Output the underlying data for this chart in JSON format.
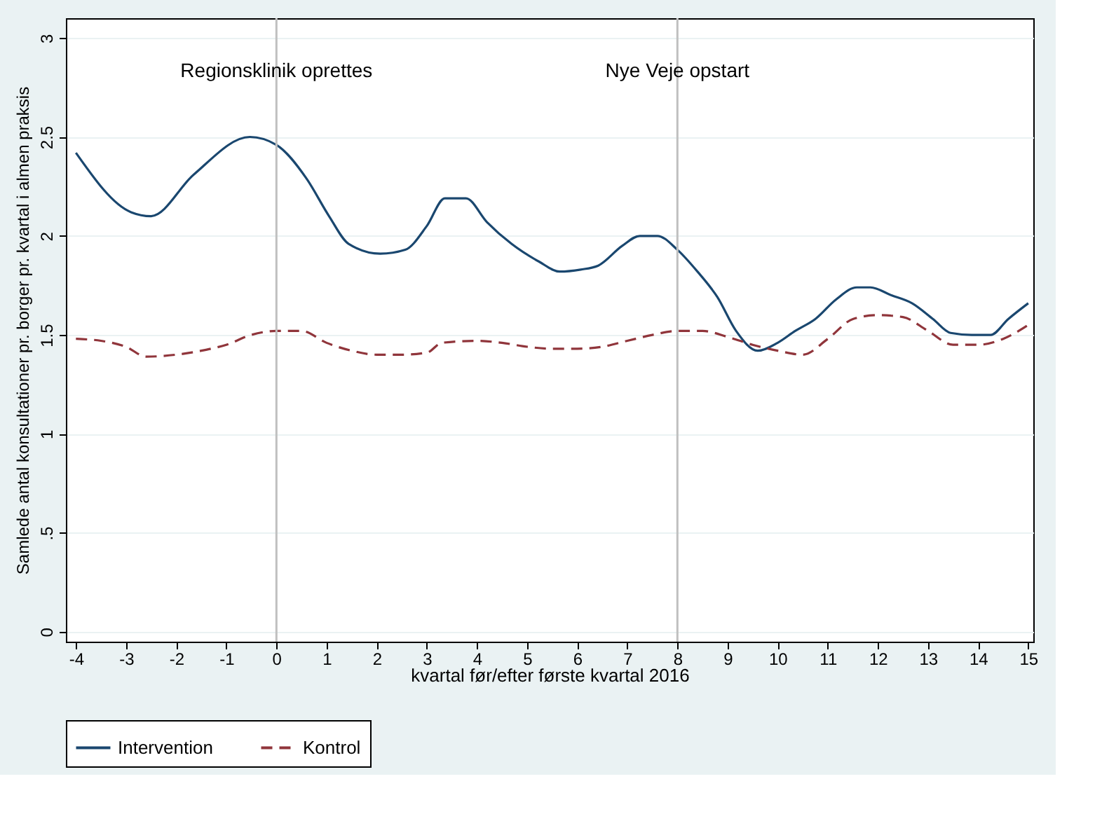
{
  "chart_data": {
    "type": "line",
    "xlabel": "kvartal før/efter første kvartal 2016",
    "ylabel": "Samlede antal konsultationer pr. borger pr. kvartal i almen praksis",
    "xlim": [
      -4.2,
      15.1
    ],
    "xticks": [
      -4,
      -3,
      -2,
      -1,
      0,
      1,
      2,
      3,
      4,
      5,
      6,
      7,
      8,
      9,
      10,
      11,
      12,
      13,
      14,
      15
    ],
    "ylim": [
      -0.05,
      3.1
    ],
    "yticks": [
      0,
      {
        "value": 0.5,
        "label": ".5"
      },
      1,
      1.5,
      2,
      2.5,
      3
    ],
    "grid": "y",
    "legend": "bottom",
    "marker": "none",
    "ref_lines": [
      {
        "axis": "x",
        "value": 0,
        "label": "Regionsklinik oprettes",
        "color": "#c0c0c0"
      },
      {
        "axis": "x",
        "value": 8,
        "label": "Nye Veje opstart",
        "color": "#c0c0c0"
      }
    ],
    "series": [
      {
        "name": "Intervention",
        "color": "#1a476f",
        "line_style": "solid",
        "x": [
          -4,
          -2.9,
          -2.5,
          -1.65,
          -0.53,
          0,
          0.6,
          1.05,
          1.44,
          2.07,
          2.57,
          3,
          3.36,
          3.78,
          4.2,
          4.69,
          5.24,
          5.65,
          6.07,
          6.42,
          6.9,
          7.25,
          7.6,
          8,
          8.4,
          8.8,
          9.17,
          9.6,
          10,
          10.35,
          10.75,
          11.17,
          11.58,
          11.85,
          12.27,
          12.68,
          13.1,
          13.45,
          13.87,
          14.25,
          14.6,
          15
        ],
        "values": [
          2.42,
          2.12,
          2.1,
          2.31,
          2.5,
          2.46,
          2.29,
          2.1,
          1.96,
          1.91,
          1.93,
          2.05,
          2.19,
          2.19,
          2.07,
          1.96,
          1.87,
          1.82,
          1.83,
          1.85,
          1.95,
          2.0,
          2.0,
          1.93,
          1.82,
          1.69,
          1.52,
          1.42,
          1.46,
          1.52,
          1.58,
          1.68,
          1.74,
          1.74,
          1.7,
          1.66,
          1.58,
          1.51,
          1.5,
          1.5,
          1.58,
          1.66
        ]
      },
      {
        "name": "Kontrol",
        "color": "#90353b",
        "line_style": "dashed",
        "x": [
          -4,
          -3.5,
          -3,
          -2.6,
          -2,
          -1.5,
          -1,
          -0.5,
          0,
          0.5,
          1,
          1.5,
          2,
          2.5,
          3,
          3.3,
          4,
          4.5,
          5,
          5.5,
          6,
          6.5,
          7,
          7.5,
          8,
          8.5,
          9,
          9.5,
          10,
          10.5,
          11,
          11.5,
          12,
          12.5,
          13,
          13.5,
          14,
          14.5,
          15
        ],
        "values": [
          1.48,
          1.47,
          1.44,
          1.39,
          1.4,
          1.42,
          1.45,
          1.5,
          1.52,
          1.52,
          1.46,
          1.42,
          1.4,
          1.4,
          1.41,
          1.46,
          1.47,
          1.46,
          1.44,
          1.43,
          1.43,
          1.44,
          1.47,
          1.5,
          1.52,
          1.52,
          1.49,
          1.45,
          1.42,
          1.4,
          1.48,
          1.58,
          1.6,
          1.59,
          1.52,
          1.45,
          1.45,
          1.48,
          1.55
        ]
      }
    ]
  }
}
